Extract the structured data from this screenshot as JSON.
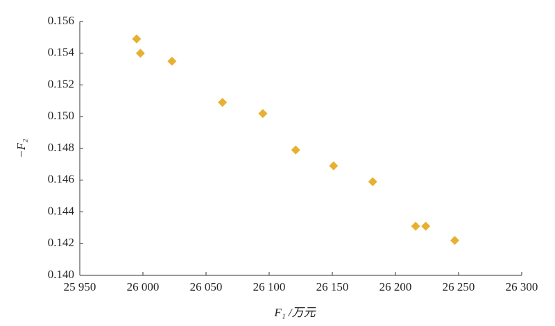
{
  "chart_data": {
    "type": "scatter",
    "xlabel": "F₁ /万元",
    "ylabel": "−F₂",
    "series": [
      {
        "color": "#e8b030",
        "x": [
          25995,
          25998,
          26023,
          26063,
          26095,
          26121,
          26151,
          26182,
          26216,
          26224,
          26247
        ],
        "values": [
          0.1549,
          0.154,
          0.1535,
          0.1509,
          0.1502,
          0.1479,
          0.1469,
          0.1459,
          0.1431,
          0.1431,
          0.1422
        ]
      }
    ],
    "xlim": [
      25950,
      26300
    ],
    "xticks": [
      {
        "value": 25950,
        "label": "25 950"
      },
      {
        "value": 26000,
        "label": "26 000"
      },
      {
        "value": 26050,
        "label": "26 050"
      },
      {
        "value": 26100,
        "label": "26 100"
      },
      {
        "value": 26150,
        "label": "26 150"
      },
      {
        "value": 26200,
        "label": "26 200"
      },
      {
        "value": 26250,
        "label": "26 250"
      },
      {
        "value": 26300,
        "label": "26 300"
      }
    ],
    "ylim": [
      0.14,
      0.156
    ],
    "yticks": [
      {
        "value": 0.14,
        "label": "0.140"
      },
      {
        "value": 0.142,
        "label": "0.142"
      },
      {
        "value": 0.144,
        "label": "0.144"
      },
      {
        "value": 0.146,
        "label": "0.146"
      },
      {
        "value": 0.148,
        "label": "0.148"
      },
      {
        "value": 0.15,
        "label": "0.150"
      },
      {
        "value": 0.152,
        "label": "0.152"
      },
      {
        "value": 0.154,
        "label": "0.154"
      },
      {
        "value": 0.156,
        "label": "0.156"
      }
    ],
    "grid": false
  }
}
